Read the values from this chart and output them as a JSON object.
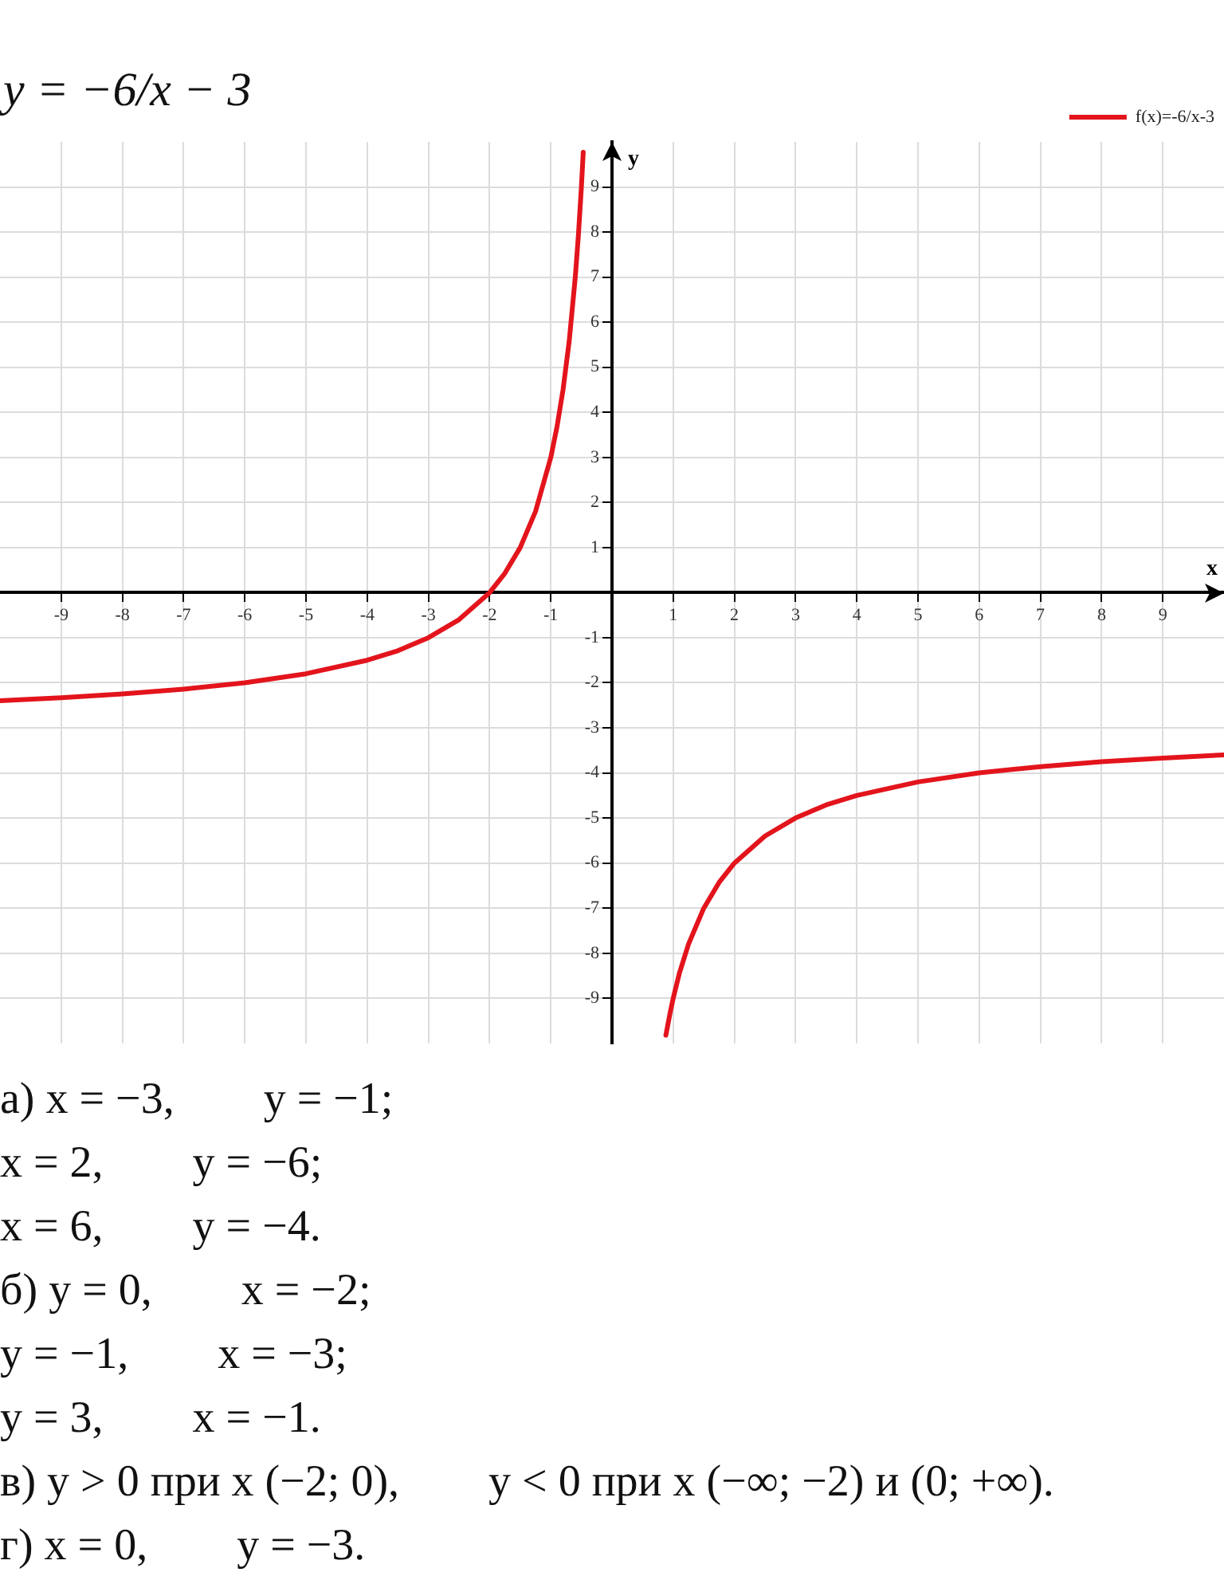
{
  "chart_data": {
    "type": "line",
    "title": "y = −6/x − 3",
    "xlabel": "x",
    "ylabel": "y",
    "x": [
      -10,
      -9,
      -8,
      -7,
      -6,
      -5,
      -4,
      -3.5,
      -3,
      -2.5,
      -2,
      -1.75,
      -1.5,
      -1.25,
      -1,
      -0.9,
      -0.8,
      -0.7,
      -0.6,
      -0.55,
      -0.5,
      -0.47,
      0,
      0.88,
      0.95,
      1,
      1.1,
      1.25,
      1.5,
      1.75,
      2,
      2.5,
      3,
      3.5,
      4,
      5,
      6,
      7,
      8,
      9,
      10
    ],
    "series": [
      {
        "name": "f(x)=-6/x-3",
        "color": "#e3141c",
        "values": [
          -2.4,
          -2.33,
          -2.25,
          -2.14,
          -2,
          -1.8,
          -1.5,
          -1.29,
          -1,
          -0.6,
          0,
          0.43,
          1,
          1.8,
          3,
          3.67,
          4.5,
          5.57,
          7,
          7.91,
          9,
          9.77,
          null,
          -9.82,
          -9.32,
          -9,
          -8.45,
          -7.8,
          -7,
          -6.43,
          -6,
          -5.4,
          -5,
          -4.71,
          -4.5,
          -4.2,
          -4,
          -3.86,
          -3.75,
          -3.67,
          -3.6
        ]
      }
    ],
    "xlim": [
      -10,
      10
    ],
    "ylim": [
      -10,
      10
    ],
    "xticks": [
      -9,
      -8,
      -7,
      -6,
      -5,
      -4,
      -3,
      -2,
      -1,
      1,
      2,
      3,
      4,
      5,
      6,
      7,
      8,
      9
    ],
    "yticks": [
      -9,
      -8,
      -7,
      -6,
      -5,
      -4,
      -3,
      -2,
      -1,
      1,
      2,
      3,
      4,
      5,
      6,
      7,
      8,
      9
    ],
    "grid": true,
    "legend": "top right",
    "marker": "none",
    "line_style": "solid",
    "annotations": [
      "а) x = −3,        y = −1;",
      "x = 2,        y = −6;",
      "x = 6,        y = −4.",
      "б) y = 0,        x = −2;",
      "y = −1,        x = −3;",
      "y = 3,        x = −1.",
      "в) y > 0 при x (−2; 0),        y < 0 при x (−∞; −2) и (0; +∞).",
      "г) x = 0,        y = −3."
    ]
  }
}
